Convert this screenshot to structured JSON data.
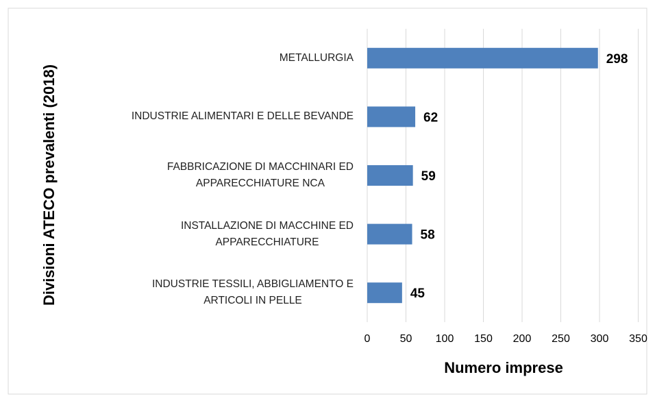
{
  "chart_data": {
    "type": "bar",
    "orientation": "horizontal",
    "x_label": "Numero imprese",
    "y_label": "Divisioni ATECO prevalenti (2018)",
    "categories": [
      "METALLURGIA",
      "INDUSTRIE ALIMENTARI E DELLE BEVANDE",
      "FABBRICAZIONE DI MACCHINARI ED\nAPPARECCHIATURE NCA",
      "INSTALLAZIONE DI MACCHINE ED\nAPPARECCHIATURE",
      "INDUSTRIE TESSILI, ABBIGLIAMENTO E\nARTICOLI IN PELLE"
    ],
    "values": [
      298,
      62,
      59,
      58,
      45
    ],
    "color": "#4f81bd",
    "xlim": [
      0,
      350
    ],
    "xticks": [
      0,
      50,
      100,
      150,
      200,
      250,
      300,
      350
    ],
    "grid": true
  }
}
